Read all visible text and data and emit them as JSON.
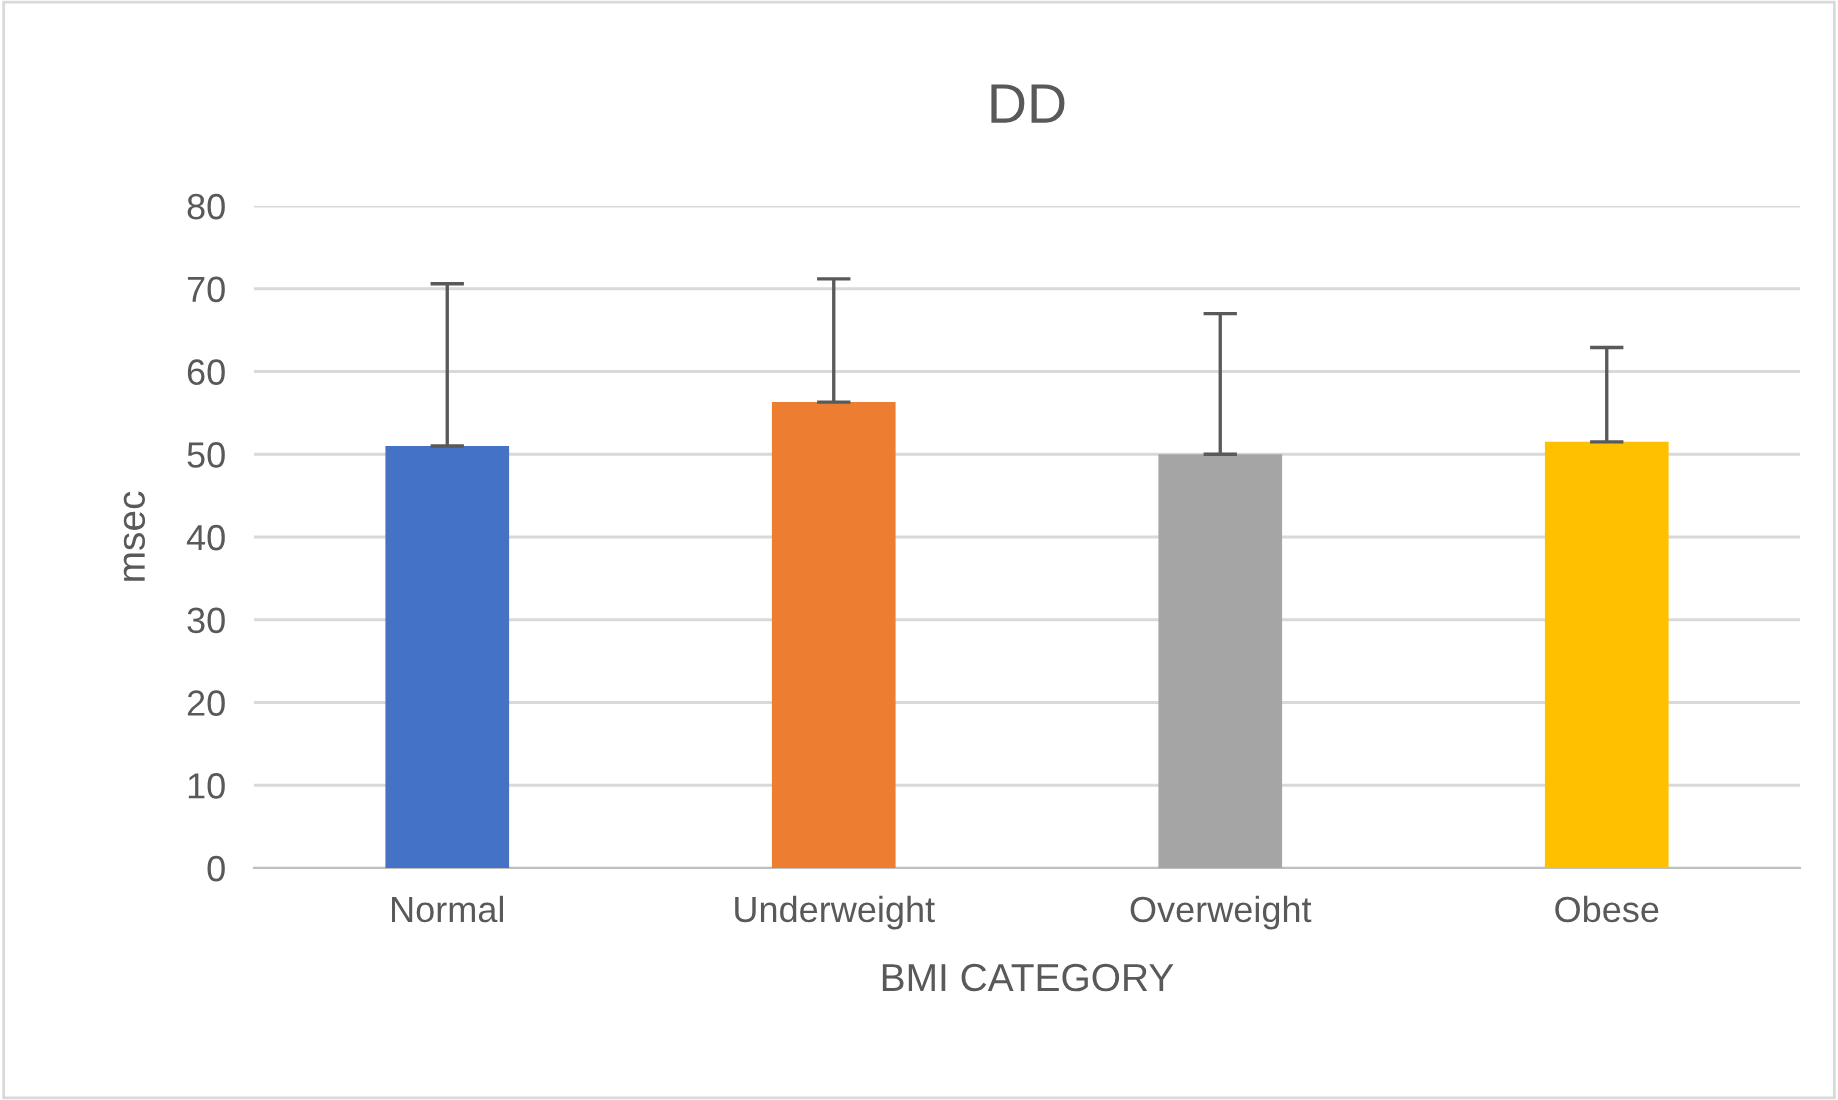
{
  "chart_data": {
    "type": "bar",
    "title": "DD",
    "xlabel": "BMI CATEGORY",
    "ylabel": "msec",
    "categories": [
      "Normal",
      "Underweight",
      "Overweight",
      "Obese"
    ],
    "values": [
      51.0,
      56.3,
      50.0,
      51.5
    ],
    "colors": [
      "#4472c4",
      "#ed7d31",
      "#a5a5a5",
      "#ffc000"
    ],
    "errors": [
      [
        51.0,
        70.6
      ],
      [
        56.3,
        71.2
      ],
      [
        50.0,
        67.0
      ],
      [
        51.5,
        62.9
      ]
    ],
    "ylim": [
      0,
      80
    ],
    "yticks": [
      0,
      10,
      20,
      30,
      40,
      50,
      60,
      70,
      80
    ],
    "grid": "y",
    "legend": false
  }
}
